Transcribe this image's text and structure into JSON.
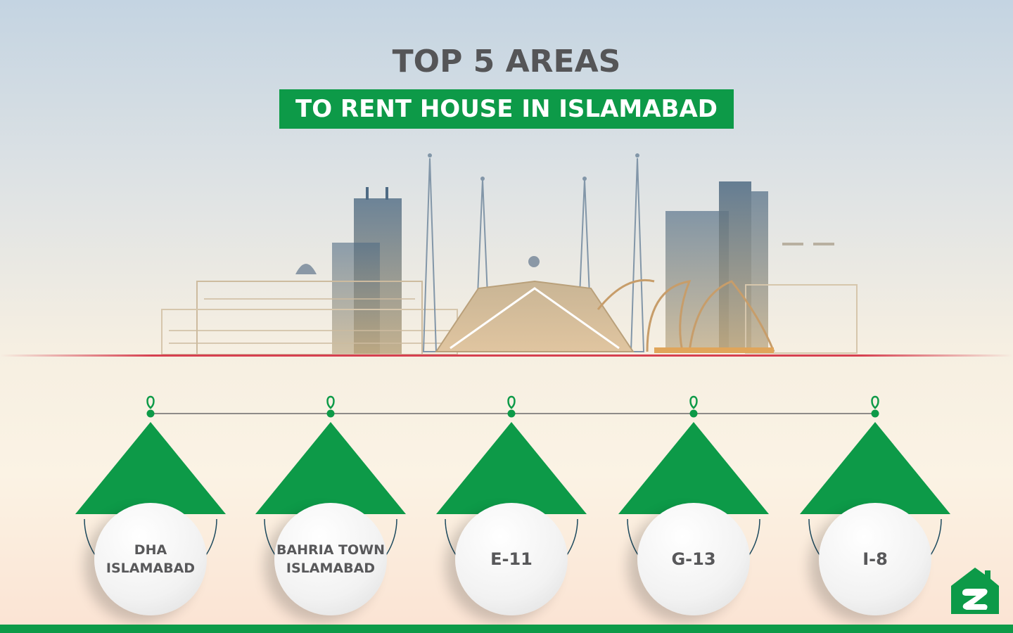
{
  "header": {
    "title": "TOP 5 AREAS",
    "subtitle": "TO RENT HOUSE IN ISLAMABAD"
  },
  "areas": [
    {
      "line1": "DHA",
      "line2": "ISLAMABAD"
    },
    {
      "line1": "BAHRIA TOWN",
      "line2": "ISLAMABAD"
    },
    {
      "line1": "E-11",
      "line2": ""
    },
    {
      "line1": "G-13",
      "line2": ""
    },
    {
      "line1": "I-8",
      "line2": ""
    }
  ],
  "colors": {
    "brand_green": "#0d9a48",
    "ground_red": "#d64050",
    "text_gray": "#58585a",
    "arc": "#1d4a5e"
  },
  "icons": {
    "pin": "map-pin-icon",
    "logo": "zameen-house-logo"
  }
}
